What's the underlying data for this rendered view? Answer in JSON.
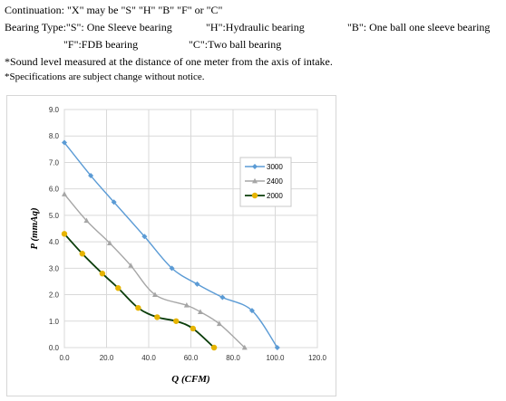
{
  "notes": {
    "line1_a": "Continuation: \"X\" may  be  \"S\"  \"H\"  \"B\"  \"F\"  or  \"C\"",
    "line2_a": "Bearing Type:\"S\": One Sleeve bearing",
    "line2_b": "\"H\":Hydraulic   bearing",
    "line2_c": "\"B\": One ball one sleeve bearing",
    "line3_a": "\"F\":FDB   bearing",
    "line3_b": "\"C\":Two ball bearing",
    "line4": "*Sound level measured at the distance of one meter from the axis of intake.",
    "line5": "*Specifications are subject change without notice."
  },
  "chart_data": {
    "type": "line",
    "xlabel": "Q (CFM)",
    "ylabel": "P (mmAq)",
    "xlim": [
      0,
      120
    ],
    "ylim": [
      0,
      9
    ],
    "x_ticks": [
      "0.0",
      "20.0",
      "40.0",
      "60.0",
      "80.0",
      "100.0",
      "120.0"
    ],
    "y_ticks": [
      "0.0",
      "1.0",
      "2.0",
      "3.0",
      "4.0",
      "5.0",
      "6.0",
      "7.0",
      "8.0",
      "9.0"
    ],
    "grid": true,
    "legend_position": "right",
    "series": [
      {
        "name": "3000",
        "color": "#5b9bd5",
        "marker": "diamond",
        "points": [
          [
            0,
            7.75
          ],
          [
            12.5,
            6.5
          ],
          [
            23.5,
            5.5
          ],
          [
            38,
            4.2
          ],
          [
            51,
            3.0
          ],
          [
            63,
            2.4
          ],
          [
            75,
            1.9
          ],
          [
            89,
            1.4
          ],
          [
            101,
            0
          ]
        ]
      },
      {
        "name": "2400",
        "color": "#a6a6a6",
        "marker": "triangle",
        "points": [
          [
            0,
            5.8
          ],
          [
            10.5,
            4.8
          ],
          [
            21.5,
            3.95
          ],
          [
            31.5,
            3.1
          ],
          [
            43,
            2.0
          ],
          [
            58,
            1.6
          ],
          [
            64.5,
            1.35
          ],
          [
            73.5,
            0.9
          ],
          [
            85.5,
            0
          ]
        ]
      },
      {
        "name": "2000",
        "color": "#0a3d0a",
        "marker_color": "#e6b400",
        "marker": "circle",
        "points": [
          [
            0,
            4.3
          ],
          [
            8.5,
            3.55
          ],
          [
            18,
            2.8
          ],
          [
            25.5,
            2.25
          ],
          [
            35,
            1.5
          ],
          [
            44,
            1.15
          ],
          [
            53,
            1.0
          ],
          [
            61,
            0.72
          ],
          [
            71,
            0
          ]
        ]
      }
    ]
  }
}
